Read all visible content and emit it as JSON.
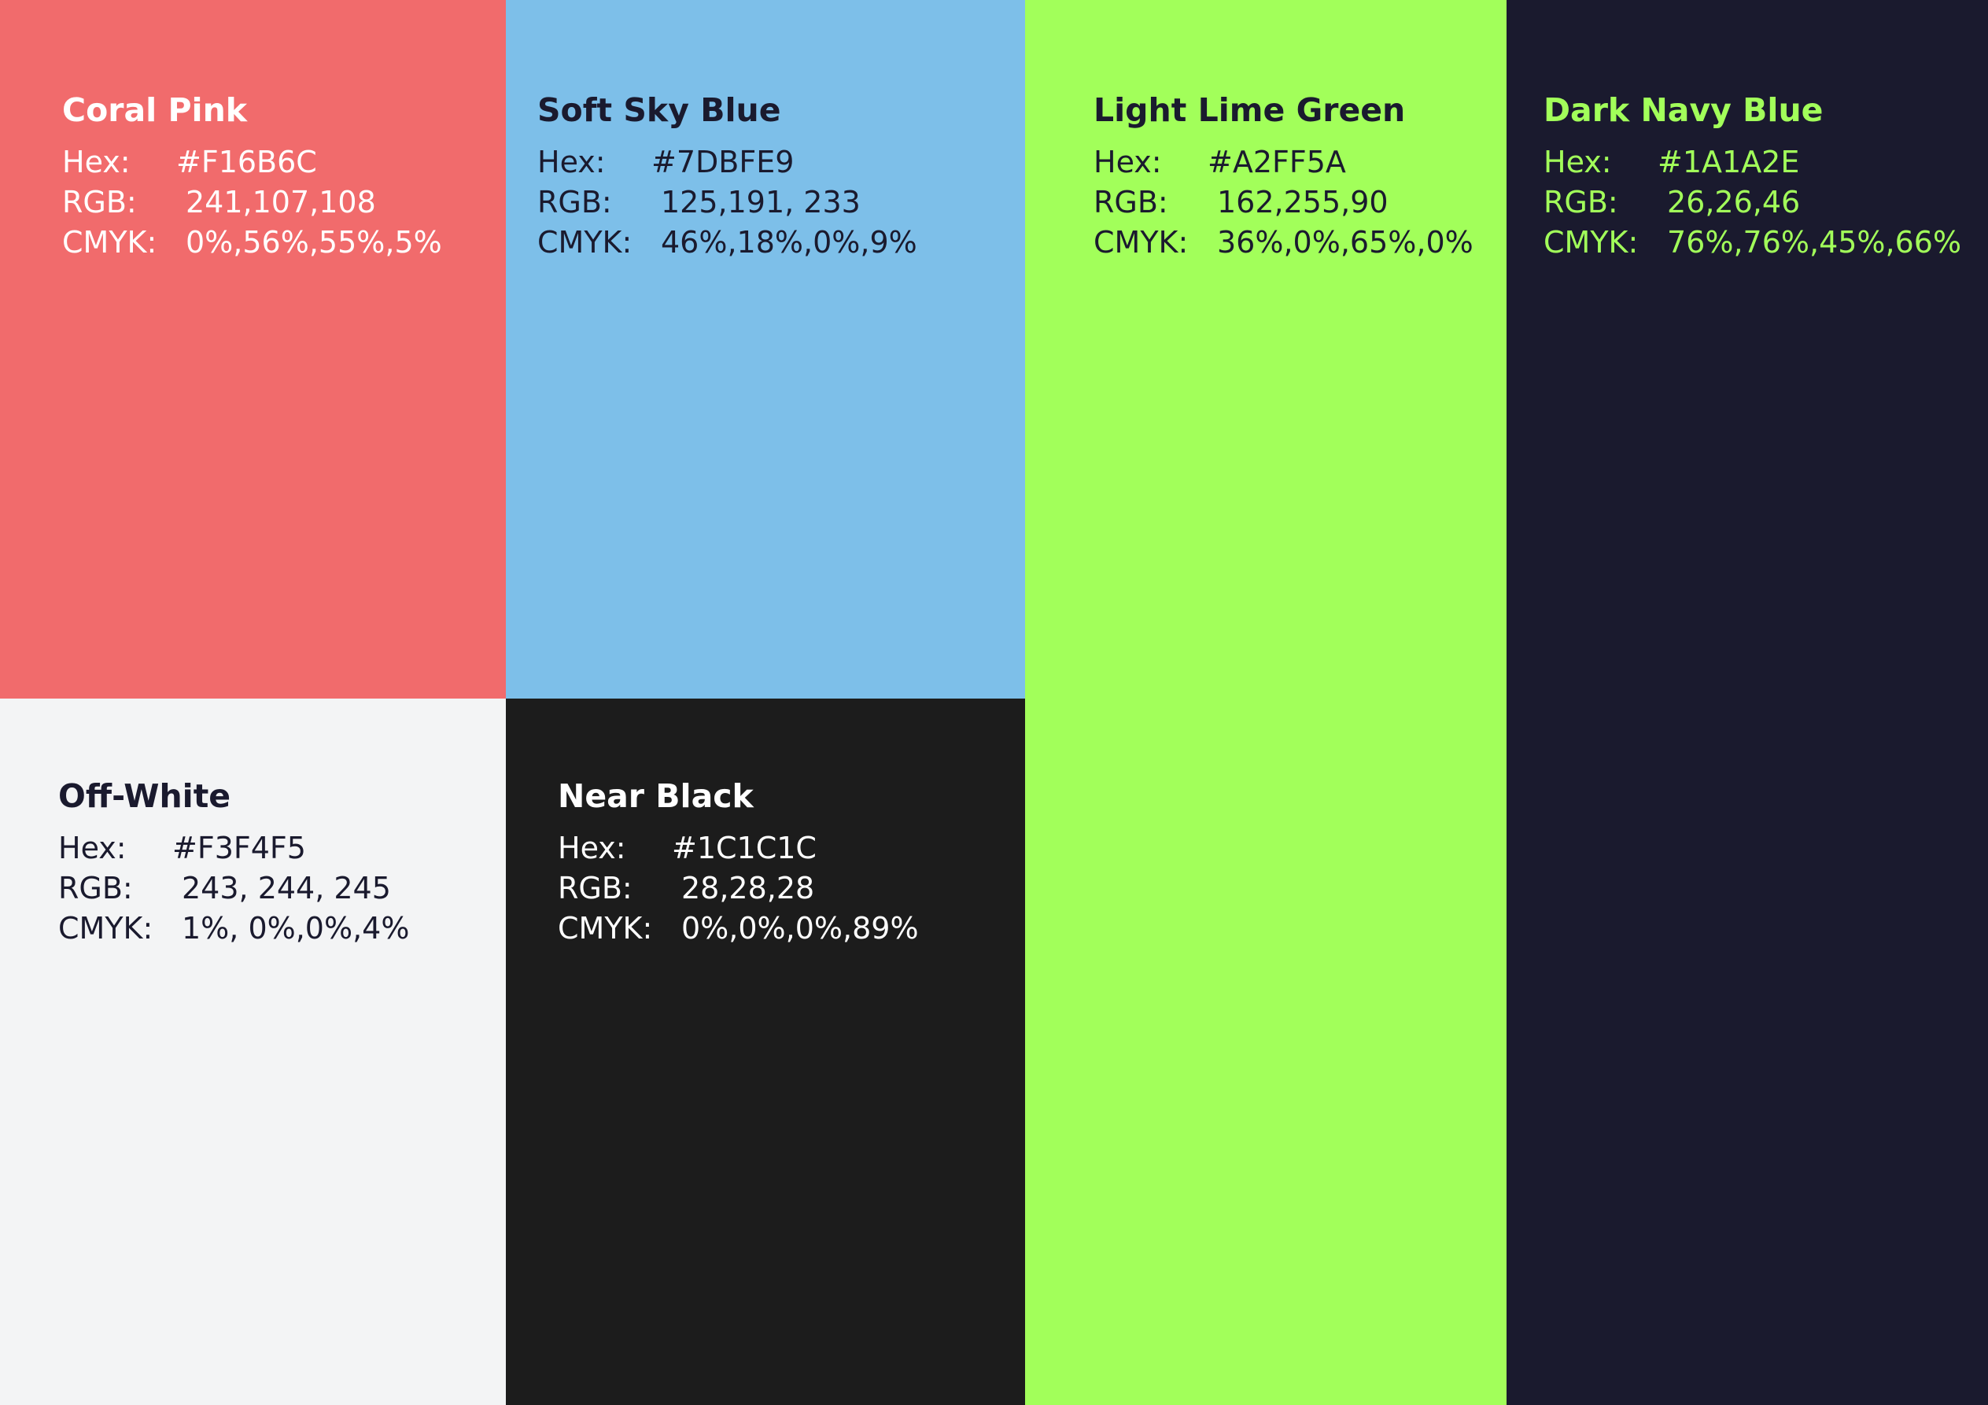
{
  "swatches": [
    {
      "id": "coral",
      "name": "Coral Pink",
      "hex_label": "Hex:",
      "hex": "#F16B6C",
      "rgb_label": "RGB:",
      "rgb": "241,107,108",
      "cmyk_label": "CMYK:",
      "cmyk": "0%,56%,55%,5%",
      "bg_color": "#F16B6C",
      "name_color": "#FFFFFF",
      "text_color": "#FFFFFF"
    },
    {
      "id": "sky",
      "name": "Soft Sky Blue",
      "hex_label": "Hex:",
      "hex": "#7DBFE9",
      "rgb_label": "RGB:",
      "rgb": "125,191, 233",
      "cmyk_label": "CMYK:",
      "cmyk": "46%,18%,0%,9%",
      "bg_color": "#7DBFE9",
      "name_color": "#1A1A2E",
      "text_color": "#1A1A2E"
    },
    {
      "id": "lime",
      "name": "Light Lime Green",
      "hex_label": "Hex:",
      "hex": "#A2FF5A",
      "rgb_label": "RGB:",
      "rgb": "162,255,90",
      "cmyk_label": "CMYK:",
      "cmyk": "36%,0%,65%,0%",
      "bg_color": "#A2FF5A",
      "name_color": "#1A1A2E",
      "text_color": "#1A1A2E"
    },
    {
      "id": "navy",
      "name": "Dark Navy Blue",
      "hex_label": "Hex:",
      "hex": "#1A1A2E",
      "rgb_label": "RGB:",
      "rgb": "26,26,46",
      "cmyk_label": "CMYK:",
      "cmyk": "76%,76%,45%,66%",
      "bg_color": "#1A1A2E",
      "name_color": "#A2FF5A",
      "text_color": "#A2FF5A"
    },
    {
      "id": "off",
      "name": "Off-White",
      "hex_label": "Hex:",
      "hex": "#F3F4F5",
      "rgb_label": "RGB:",
      "rgb": "243, 244, 245",
      "cmyk_label": "CMYK:",
      "cmyk": "1%, 0%,0%,4%",
      "bg_color": "#F3F4F5",
      "name_color": "#1A1A2E",
      "text_color": "#1A1A2E"
    },
    {
      "id": "black",
      "name": "Near Black",
      "hex_label": "Hex:",
      "hex": "#1C1C1C",
      "rgb_label": "RGB:",
      "rgb": "28,28,28",
      "cmyk_label": "CMYK:",
      "cmyk": "0%,0%,0%,89%",
      "bg_color": "#1C1C1C",
      "name_color": "#FFFFFF",
      "text_color": "#FFFFFF"
    }
  ]
}
